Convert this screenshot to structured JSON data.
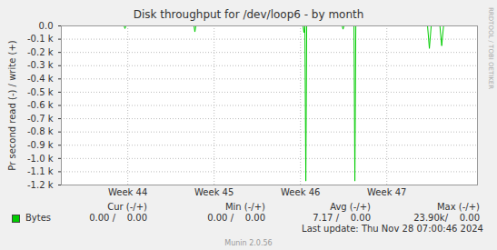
{
  "chart_data": {
    "type": "line",
    "title": "Disk throughput for /dev/loop6 - by month",
    "y_label": "Pr second read (-) / write (+)",
    "x": [
      43.23,
      43.957,
      43.967,
      43.978,
      44.767,
      44.777,
      44.788,
      46.03,
      46.04,
      46.051,
      46.062,
      46.072,
      46.483,
      46.493,
      46.504,
      46.62,
      46.63,
      46.641,
      47.472,
      47.493,
      47.514,
      47.615,
      47.636,
      47.657,
      48.05
    ],
    "series": [
      {
        "name": "Bytes",
        "color": "#00cc00",
        "values": [
          0,
          0,
          -20,
          0,
          0,
          -45,
          0,
          0,
          -50,
          0,
          -1170,
          0,
          0,
          -25,
          0,
          0,
          -1170,
          0,
          0,
          -170,
          0,
          0,
          -150,
          0,
          0
        ]
      }
    ],
    "xlim": [
      43.23,
      48.05
    ],
    "xticks": [
      {
        "value": 44,
        "label": "Week 44"
      },
      {
        "value": 45,
        "label": "Week 45"
      },
      {
        "value": 46,
        "label": "Week 46"
      },
      {
        "value": 47,
        "label": "Week 47"
      }
    ],
    "ylim": [
      -1200,
      0
    ],
    "yticks": [
      {
        "value": 0,
        "label": "0.0"
      },
      {
        "value": -100,
        "label": "-0.1 k"
      },
      {
        "value": -200,
        "label": "-0.2 k"
      },
      {
        "value": -300,
        "label": "-0.3 k"
      },
      {
        "value": -400,
        "label": "-0.4 k"
      },
      {
        "value": -500,
        "label": "-0.5 k"
      },
      {
        "value": -600,
        "label": "-0.6 k"
      },
      {
        "value": -700,
        "label": "-0.7 k"
      },
      {
        "value": -800,
        "label": "-0.8 k"
      },
      {
        "value": -900,
        "label": "-0.9 k"
      },
      {
        "value": -1000,
        "label": "-1.0 k"
      },
      {
        "value": -1100,
        "label": "-1.1 k"
      },
      {
        "value": -1200,
        "label": "-1.2 k"
      }
    ],
    "grid": true,
    "legend_table": {
      "columns": [
        "Cur (-/+)",
        "Min (-/+)",
        "Avg (-/+)",
        "Max (-/+)"
      ],
      "rows": [
        {
          "name": "Bytes",
          "cells": [
            "0.00 /    0.00",
            "0.00 /    0.00",
            "7.17 /    0.00",
            "23.90k/    0.00"
          ]
        }
      ]
    },
    "footer": "Last update: Thu Nov 28 07:00:46 2024",
    "credit": "Munin 2.0.56",
    "side_text": "RRDTOOL / TOBI OETIKER"
  }
}
